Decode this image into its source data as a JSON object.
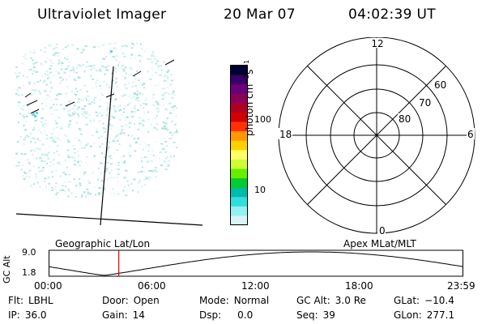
{
  "header": {
    "instrument": "Ultraviolet Imager",
    "date": "20 Mar 07",
    "time": "04:02:39 UT"
  },
  "colorbar": {
    "unit_label": "photon cm",
    "unit_exp1": "−2",
    "unit_mid": "s",
    "unit_exp2": "−1",
    "ticks": [
      {
        "value": 100,
        "label": "100"
      },
      {
        "value": 10,
        "label": "10"
      }
    ],
    "colors": [
      "#000033",
      "#3a0066",
      "#6b007a",
      "#8c0055",
      "#b00022",
      "#d40000",
      "#ff3300",
      "#ff9900",
      "#ffd000",
      "#ffff66",
      "#ccff33",
      "#66ee00",
      "#00cc33",
      "#00bbaa",
      "#33dddd",
      "#99eeee",
      "#d8f4f4"
    ]
  },
  "polar": {
    "mlt_labels": {
      "top": "12",
      "left": "18",
      "right": "6",
      "bottom": "0"
    },
    "lat_labels": [
      "60",
      "70",
      "80"
    ]
  },
  "timeline": {
    "axis_title": "GC Alt",
    "y_labels": [
      "9.0",
      "1.8"
    ],
    "left_caption": "Geographic Lat/Lon",
    "right_caption": "Apex MLat/MLT",
    "x_ticks": [
      "00:00",
      "06:00",
      "12:00",
      "18:00",
      "23:59"
    ],
    "marker_time": "04:02:39",
    "marker_color": "#dd0000"
  },
  "status": {
    "filter_label": "Flt:",
    "filter_value": "LBHL",
    "door_label": "Door:",
    "door_value": "Open",
    "mode_label": "Mode:",
    "mode_value": "Normal",
    "gcalt_label": "GC Alt:",
    "gcalt_value": "3.0 Re",
    "glat_label": "GLat:",
    "glat_value": "−10.4",
    "ip_label": "IP:",
    "ip_value": "36.0",
    "gain_label": "Gain:",
    "gain_value": "14",
    "dsp_label": "Dsp:",
    "dsp_value": "0.0",
    "seq_label": "Seq:",
    "seq_value": "39",
    "glon_label": "GLon:",
    "glon_value": "277.1"
  }
}
